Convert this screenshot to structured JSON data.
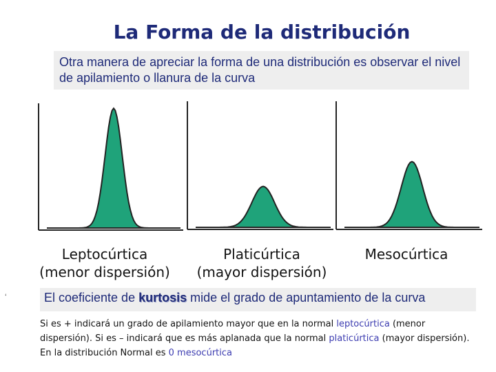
{
  "title": "La Forma de la distribución",
  "intro": "Otra manera de apreciar la forma de una distribución es observar el nivel de apilamiento o llanura de la curva",
  "curves": [
    {
      "name": "Leptocúrtica",
      "caption": "(menor dispersión)",
      "relative_height": 0.96,
      "relative_width": 0.32
    },
    {
      "name": "Platicúrtica",
      "caption": "(mayor dispersión)",
      "relative_height": 0.33,
      "relative_width": 0.42
    },
    {
      "name": "Mesocúrtica",
      "caption": "",
      "relative_height": 0.53,
      "relative_width": 0.4
    }
  ],
  "fill_color": "#1fa37a",
  "kurtosis": {
    "prefix": "El coeficiente de ",
    "keyword": "kurtosis",
    "suffix": " mide el grado de apuntamiento de la curva"
  },
  "note": {
    "p1": "Si es + indicará un grado de apilamiento mayor que en la normal ",
    "w1": "leptocúrtica",
    "p2": " (menor dispersión). Si es – indicará que es más aplanada que la normal ",
    "w2": "platicúrtica",
    "p3": " (mayor dispersión). En la distribución Normal es ",
    "w3": "0 mesocúrtica"
  },
  "footnote_mark": "‘"
}
